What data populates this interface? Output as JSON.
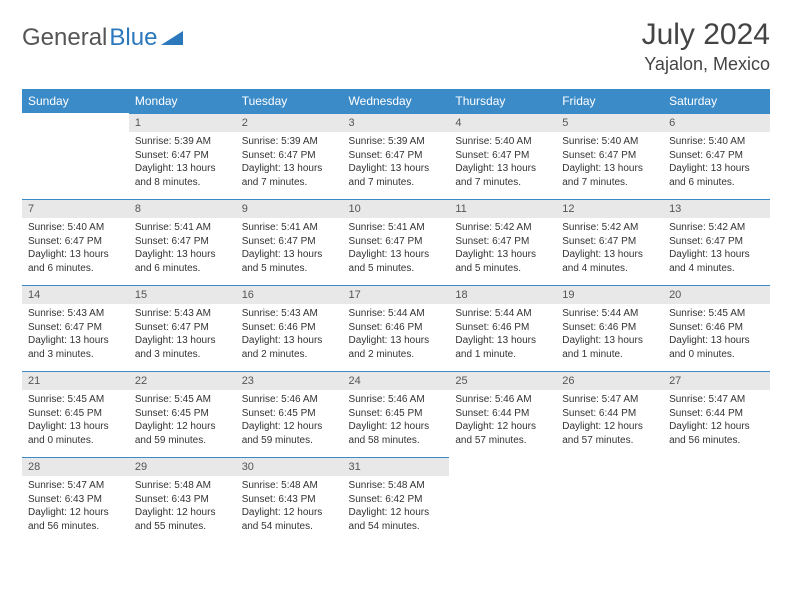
{
  "logo": {
    "text1": "General",
    "text2": "Blue"
  },
  "title": "July 2024",
  "location": "Yajalon, Mexico",
  "colors": {
    "header_bg": "#3b8bc9",
    "header_text": "#ffffff",
    "daynum_bg": "#e8e8e8",
    "border": "#3b8bc9",
    "text": "#333333",
    "logo_gray": "#555555",
    "logo_blue": "#2b78bd"
  },
  "weekdays": [
    "Sunday",
    "Monday",
    "Tuesday",
    "Wednesday",
    "Thursday",
    "Friday",
    "Saturday"
  ],
  "weeks": [
    [
      null,
      {
        "n": "1",
        "sr": "5:39 AM",
        "ss": "6:47 PM",
        "dl": "13 hours and 8 minutes."
      },
      {
        "n": "2",
        "sr": "5:39 AM",
        "ss": "6:47 PM",
        "dl": "13 hours and 7 minutes."
      },
      {
        "n": "3",
        "sr": "5:39 AM",
        "ss": "6:47 PM",
        "dl": "13 hours and 7 minutes."
      },
      {
        "n": "4",
        "sr": "5:40 AM",
        "ss": "6:47 PM",
        "dl": "13 hours and 7 minutes."
      },
      {
        "n": "5",
        "sr": "5:40 AM",
        "ss": "6:47 PM",
        "dl": "13 hours and 7 minutes."
      },
      {
        "n": "6",
        "sr": "5:40 AM",
        "ss": "6:47 PM",
        "dl": "13 hours and 6 minutes."
      }
    ],
    [
      {
        "n": "7",
        "sr": "5:40 AM",
        "ss": "6:47 PM",
        "dl": "13 hours and 6 minutes."
      },
      {
        "n": "8",
        "sr": "5:41 AM",
        "ss": "6:47 PM",
        "dl": "13 hours and 6 minutes."
      },
      {
        "n": "9",
        "sr": "5:41 AM",
        "ss": "6:47 PM",
        "dl": "13 hours and 5 minutes."
      },
      {
        "n": "10",
        "sr": "5:41 AM",
        "ss": "6:47 PM",
        "dl": "13 hours and 5 minutes."
      },
      {
        "n": "11",
        "sr": "5:42 AM",
        "ss": "6:47 PM",
        "dl": "13 hours and 5 minutes."
      },
      {
        "n": "12",
        "sr": "5:42 AM",
        "ss": "6:47 PM",
        "dl": "13 hours and 4 minutes."
      },
      {
        "n": "13",
        "sr": "5:42 AM",
        "ss": "6:47 PM",
        "dl": "13 hours and 4 minutes."
      }
    ],
    [
      {
        "n": "14",
        "sr": "5:43 AM",
        "ss": "6:47 PM",
        "dl": "13 hours and 3 minutes."
      },
      {
        "n": "15",
        "sr": "5:43 AM",
        "ss": "6:47 PM",
        "dl": "13 hours and 3 minutes."
      },
      {
        "n": "16",
        "sr": "5:43 AM",
        "ss": "6:46 PM",
        "dl": "13 hours and 2 minutes."
      },
      {
        "n": "17",
        "sr": "5:44 AM",
        "ss": "6:46 PM",
        "dl": "13 hours and 2 minutes."
      },
      {
        "n": "18",
        "sr": "5:44 AM",
        "ss": "6:46 PM",
        "dl": "13 hours and 1 minute."
      },
      {
        "n": "19",
        "sr": "5:44 AM",
        "ss": "6:46 PM",
        "dl": "13 hours and 1 minute."
      },
      {
        "n": "20",
        "sr": "5:45 AM",
        "ss": "6:46 PM",
        "dl": "13 hours and 0 minutes."
      }
    ],
    [
      {
        "n": "21",
        "sr": "5:45 AM",
        "ss": "6:45 PM",
        "dl": "13 hours and 0 minutes."
      },
      {
        "n": "22",
        "sr": "5:45 AM",
        "ss": "6:45 PM",
        "dl": "12 hours and 59 minutes."
      },
      {
        "n": "23",
        "sr": "5:46 AM",
        "ss": "6:45 PM",
        "dl": "12 hours and 59 minutes."
      },
      {
        "n": "24",
        "sr": "5:46 AM",
        "ss": "6:45 PM",
        "dl": "12 hours and 58 minutes."
      },
      {
        "n": "25",
        "sr": "5:46 AM",
        "ss": "6:44 PM",
        "dl": "12 hours and 57 minutes."
      },
      {
        "n": "26",
        "sr": "5:47 AM",
        "ss": "6:44 PM",
        "dl": "12 hours and 57 minutes."
      },
      {
        "n": "27",
        "sr": "5:47 AM",
        "ss": "6:44 PM",
        "dl": "12 hours and 56 minutes."
      }
    ],
    [
      {
        "n": "28",
        "sr": "5:47 AM",
        "ss": "6:43 PM",
        "dl": "12 hours and 56 minutes."
      },
      {
        "n": "29",
        "sr": "5:48 AM",
        "ss": "6:43 PM",
        "dl": "12 hours and 55 minutes."
      },
      {
        "n": "30",
        "sr": "5:48 AM",
        "ss": "6:43 PM",
        "dl": "12 hours and 54 minutes."
      },
      {
        "n": "31",
        "sr": "5:48 AM",
        "ss": "6:42 PM",
        "dl": "12 hours and 54 minutes."
      },
      null,
      null,
      null
    ]
  ],
  "labels": {
    "sunrise": "Sunrise:",
    "sunset": "Sunset:",
    "daylight": "Daylight:"
  }
}
